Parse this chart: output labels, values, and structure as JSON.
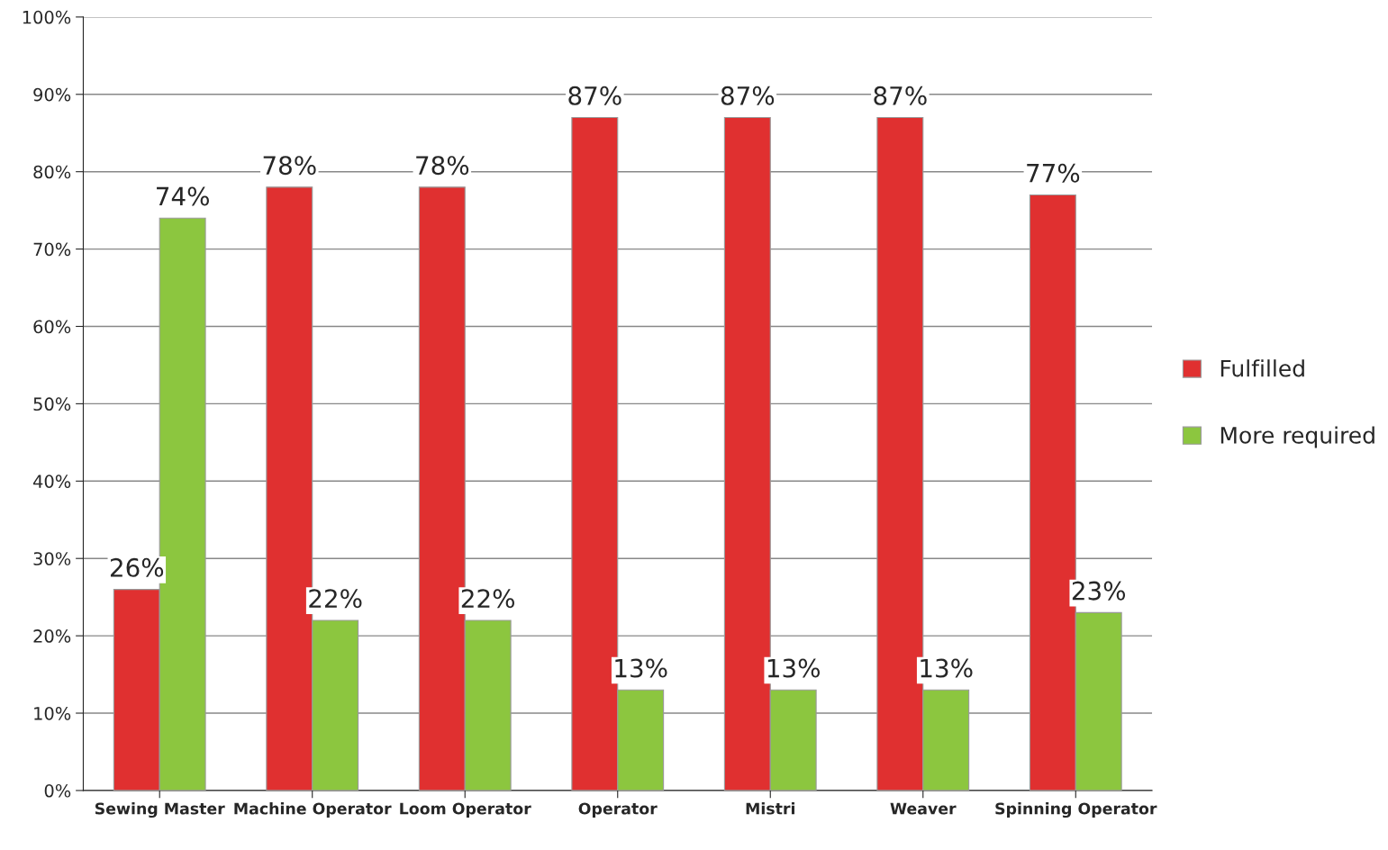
{
  "chart_data": {
    "type": "bar",
    "categories": [
      "Sewing Master",
      "Machine Operator",
      "Loom Operator",
      "Operator",
      "Mistri",
      "Weaver",
      "Spinning Operator"
    ],
    "series": [
      {
        "name": "Fulfilled",
        "color": "#e03030",
        "values": [
          26,
          78,
          78,
          87,
          87,
          87,
          77
        ],
        "value_labels": [
          "26%",
          "78%",
          "78%",
          "87%",
          "87%",
          "87%",
          "77%"
        ]
      },
      {
        "name": "More required",
        "color": "#8cc63f",
        "values": [
          74,
          22,
          22,
          13,
          13,
          13,
          23
        ],
        "value_labels": [
          "74%",
          "22%",
          "22%",
          "13%",
          "13%",
          "13%",
          "23%"
        ]
      }
    ],
    "ylim": [
      0,
      100
    ],
    "yticks": [
      {
        "value": 0,
        "label": "0%"
      },
      {
        "value": 10,
        "label": "10%"
      },
      {
        "value": 20,
        "label": "20%"
      },
      {
        "value": 30,
        "label": "30%"
      },
      {
        "value": 40,
        "label": "40%"
      },
      {
        "value": 50,
        "label": "50%"
      },
      {
        "value": 60,
        "label": "60%"
      },
      {
        "value": 70,
        "label": "70%"
      },
      {
        "value": 80,
        "label": "80%"
      },
      {
        "value": 90,
        "label": "90%"
      },
      {
        "value": 100,
        "label": "100%"
      }
    ],
    "grid": "y",
    "legend": "right"
  }
}
